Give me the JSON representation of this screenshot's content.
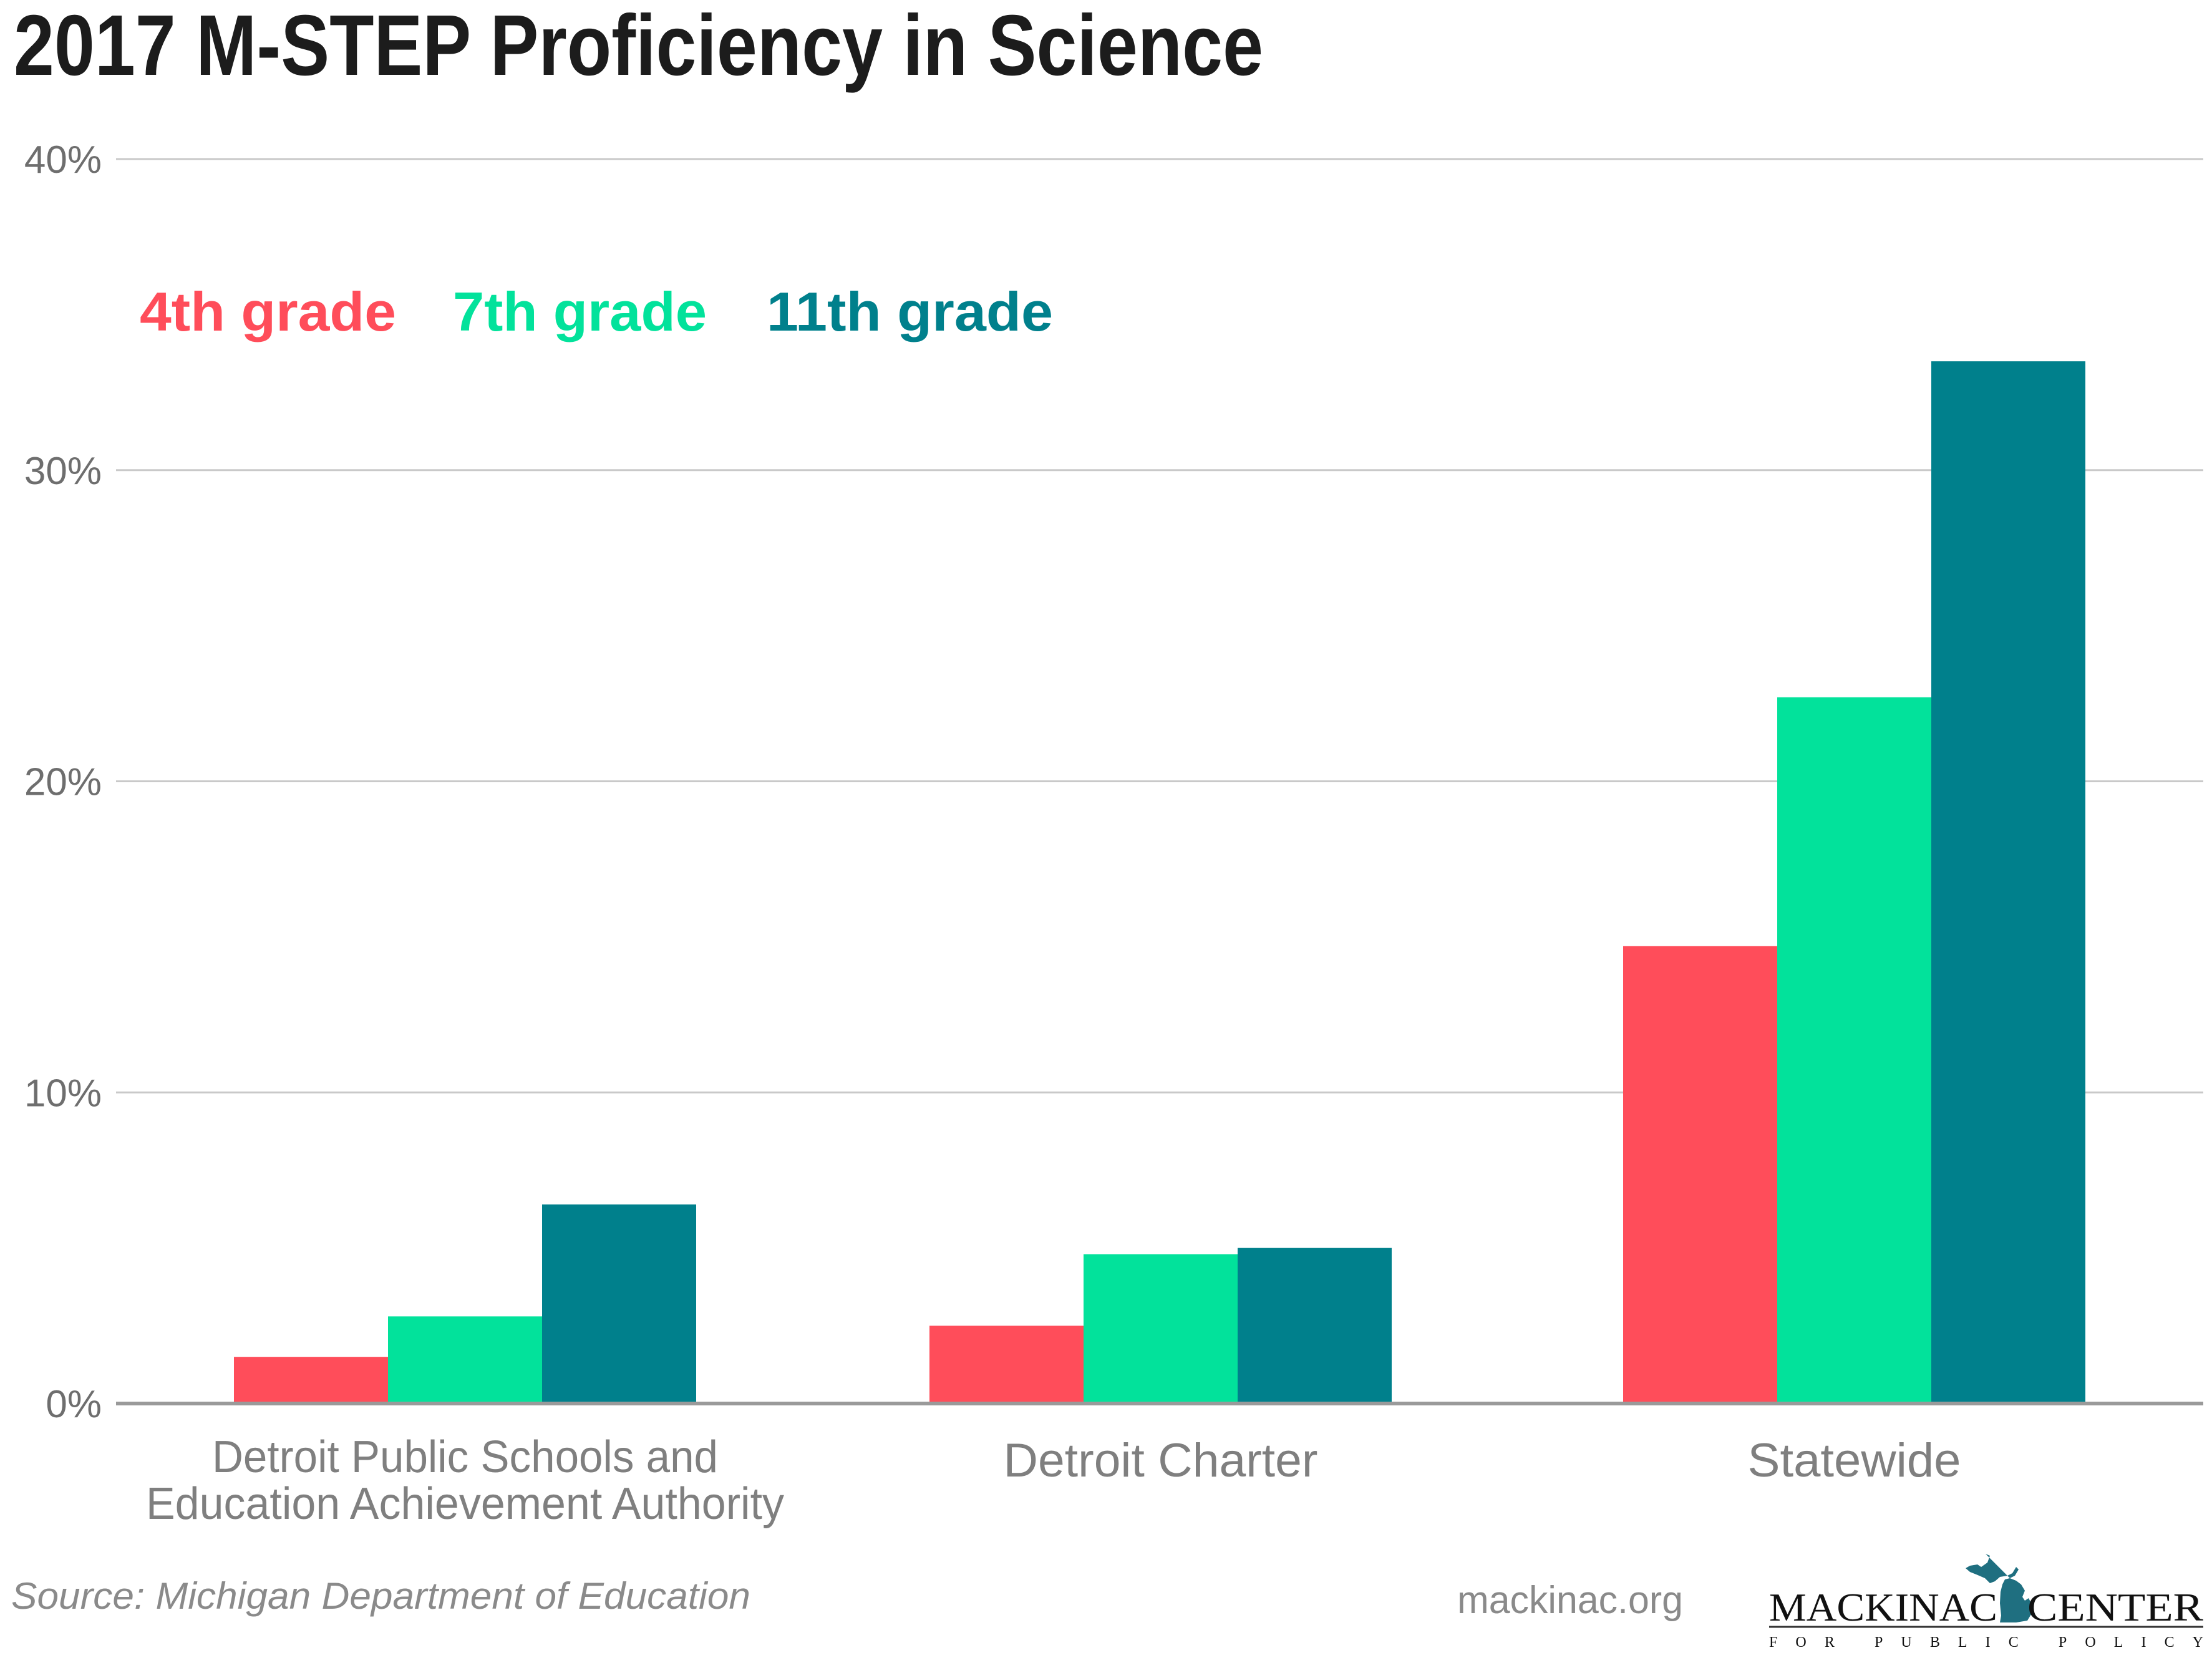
{
  "chart_data": {
    "type": "bar",
    "title": "2017 M-STEP Proficiency in Science",
    "xlabel": "",
    "ylabel": "",
    "ylim": [
      0,
      40
    ],
    "yticks": [
      0,
      10,
      20,
      30,
      40
    ],
    "ytick_labels": [
      "0%",
      "10%",
      "20%",
      "30%",
      "40%"
    ],
    "grid": true,
    "legend_position": "top-left",
    "categories": [
      [
        "Detroit Public Schools and",
        "Education Achievement Authority"
      ],
      [
        "Detroit Charter"
      ],
      [
        "Statewide"
      ]
    ],
    "series": [
      {
        "name": "4th grade",
        "color": "#ff4d5a",
        "values": [
          1.5,
          2.5,
          14.7
        ]
      },
      {
        "name": "7th grade",
        "color": "#02e29b",
        "values": [
          2.8,
          4.8,
          22.7
        ]
      },
      {
        "name": "11th grade",
        "color": "#00808c",
        "values": [
          6.4,
          5.0,
          33.5
        ]
      }
    ],
    "unit": "%"
  },
  "footer": {
    "source": "Source: Michigan Department of Education",
    "site": "mackinac.org",
    "logo": {
      "name_left": "MACKINAC",
      "name_right": "CENTER",
      "tagline": "FOR PUBLIC POLICY",
      "map_color": "#1f6f80"
    }
  }
}
